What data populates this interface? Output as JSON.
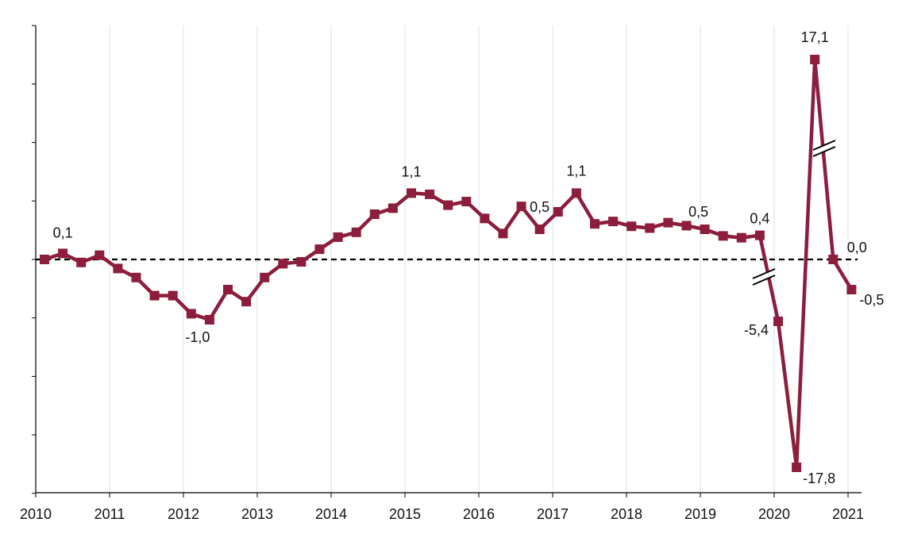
{
  "chart_data": {
    "type": "line",
    "title": "",
    "xlabel": "",
    "ylabel": "",
    "x_tick_labels": [
      "2010",
      "2011",
      "2012",
      "2013",
      "2014",
      "2015",
      "2016",
      "2017",
      "2018",
      "2019",
      "2020",
      "2021"
    ],
    "y_tick_labels_shown": false,
    "y_axis_break": true,
    "grid": "vertical",
    "reference_line": {
      "value": 0,
      "style": "dashed"
    },
    "color": "#8c1d3c",
    "series": [
      {
        "x": [
          "2010Q1",
          "2010Q2",
          "2010Q3",
          "2010Q4",
          "2011Q1",
          "2011Q2",
          "2011Q3",
          "2011Q4",
          "2012Q1",
          "2012Q2",
          "2012Q3",
          "2012Q4",
          "2013Q1",
          "2013Q2",
          "2013Q3",
          "2013Q4",
          "2014Q1",
          "2014Q2",
          "2014Q3",
          "2014Q4",
          "2015Q1",
          "2015Q2",
          "2015Q3",
          "2015Q4",
          "2016Q1",
          "2016Q2",
          "2016Q3",
          "2016Q4",
          "2017Q1",
          "2017Q2",
          "2017Q3",
          "2017Q4",
          "2018Q1",
          "2018Q2",
          "2018Q3",
          "2018Q4",
          "2019Q1",
          "2019Q2",
          "2019Q3",
          "2019Q4",
          "2020Q1",
          "2020Q2",
          "2020Q3",
          "2020Q4",
          "2021Q1"
        ],
        "values": [
          0.0,
          0.1,
          -0.05,
          0.07,
          -0.15,
          -0.3,
          -0.6,
          -0.6,
          -0.9,
          -1.0,
          -0.5,
          -0.7,
          -0.3,
          -0.07,
          -0.04,
          0.17,
          0.37,
          0.45,
          0.75,
          0.85,
          1.1,
          1.08,
          0.9,
          0.96,
          0.68,
          0.43,
          0.88,
          0.5,
          0.79,
          1.1,
          0.59,
          0.63,
          0.55,
          0.52,
          0.61,
          0.56,
          0.5,
          0.39,
          0.36,
          0.4,
          -5.4,
          -17.8,
          17.1,
          0.0,
          -0.5
        ]
      }
    ],
    "data_labels": [
      {
        "index": 1,
        "text": "0,1"
      },
      {
        "index": 9,
        "text": "-1,0"
      },
      {
        "index": 20,
        "text": "1,1"
      },
      {
        "index": 27,
        "text": "0,5"
      },
      {
        "index": 29,
        "text": "1,1"
      },
      {
        "index": 36,
        "text": "0,5"
      },
      {
        "index": 39,
        "text": "0,4"
      },
      {
        "index": 40,
        "text": "-5,4"
      },
      {
        "index": 41,
        "text": "-17,8"
      },
      {
        "index": 42,
        "text": "17,1"
      },
      {
        "index": 43,
        "text": "0,0"
      },
      {
        "index": 44,
        "text": "-0,5"
      }
    ]
  }
}
